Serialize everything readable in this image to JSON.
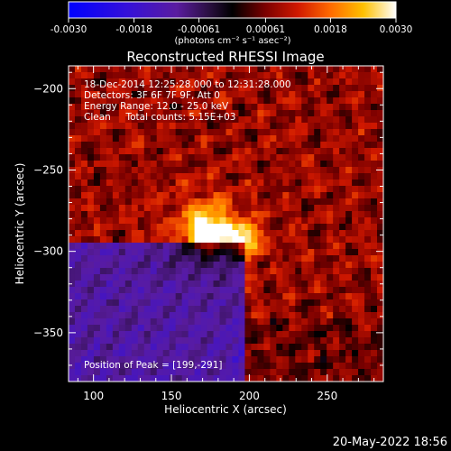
{
  "colorbar": {
    "tick_labels": [
      "-0.0030",
      "-0.0018",
      "-0.00061",
      "0.00061",
      "0.0018",
      "0.0030"
    ],
    "unit_label": "(photons cm⁻² s⁻¹ asec⁻²)",
    "range": [
      -0.003,
      0.003
    ]
  },
  "plot": {
    "title": "Reconstructed RHESSI Image",
    "info_lines": [
      "18-Dec-2014 12:25:28.000 to 12:31:28.000",
      "Detectors: 3F 6F 7F 9F, Att 0",
      "Energy Range: 12.0 - 25.0 keV",
      "Clean     Total counts: 5.15E+03"
    ],
    "peak_label": "Position of Peak = [199,-291]",
    "peak_position": [
      199,
      -291
    ],
    "x_axis": {
      "label": "Heliocentric X (arcsec)",
      "range": [
        84,
        286
      ],
      "tick_values": [
        100,
        150,
        200,
        250
      ],
      "tick_labels": [
        "100",
        "150",
        "200",
        "250"
      ]
    },
    "y_axis": {
      "label": "Heliocentric Y (arcsec)",
      "range": [
        -380,
        -186
      ],
      "tick_values": [
        -200,
        -250,
        -300,
        -350
      ],
      "tick_labels": [
        "−200",
        "−250",
        "−300",
        "−350"
      ]
    }
  },
  "footer": {
    "timestamp": "20-May-2022 18:56"
  },
  "colors": {
    "background": "#000000",
    "axes": "#ffffff",
    "text": "#ffffff"
  }
}
